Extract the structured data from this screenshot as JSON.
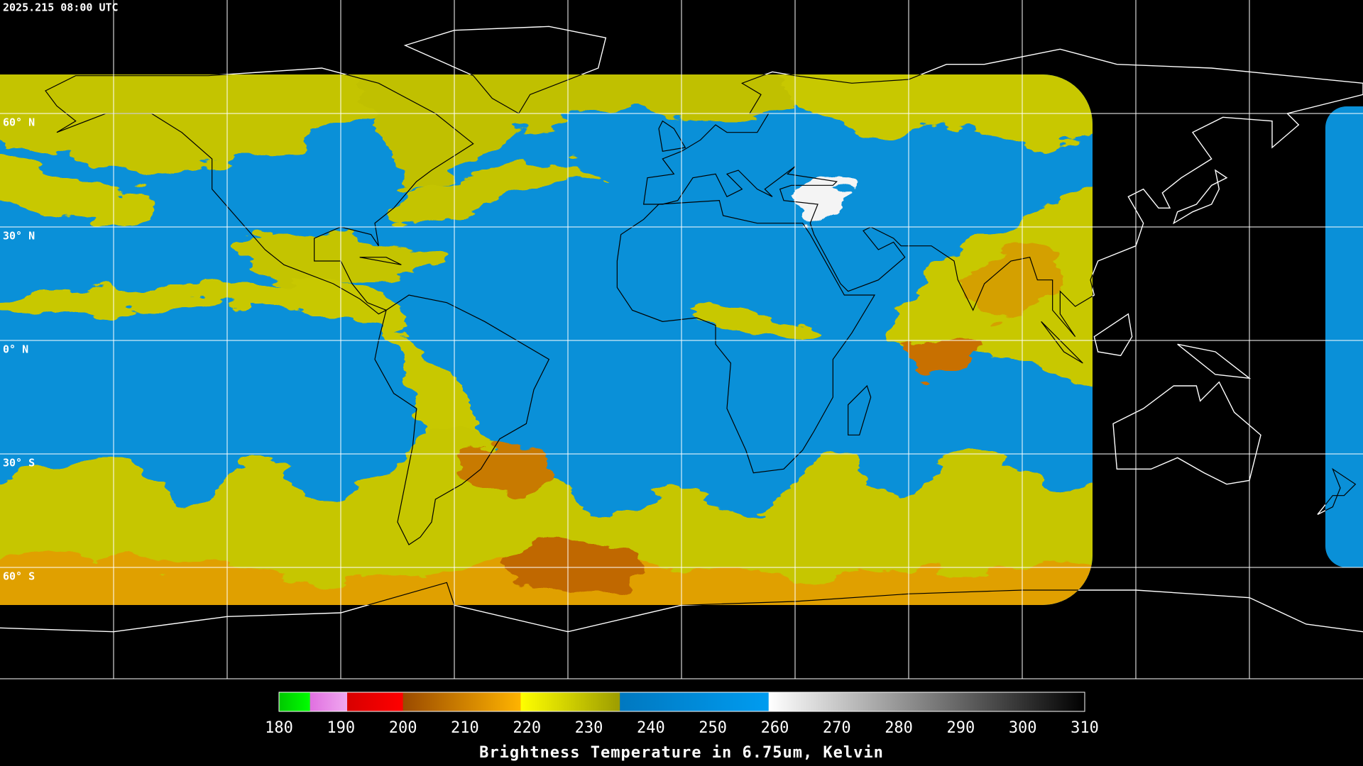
{
  "header": {
    "timestamp": "2025.215 08:00 UTC"
  },
  "map": {
    "latitude_labels": [
      "60° N",
      "30° N",
      "0° N",
      "30° S",
      "60° S"
    ]
  },
  "colorbar": {
    "title": "Brightness Temperature in 6.75um, Kelvin",
    "range": [
      180,
      310
    ],
    "ticks": [
      180,
      190,
      200,
      210,
      220,
      230,
      240,
      250,
      260,
      270,
      280,
      290,
      300,
      310
    ],
    "segments": [
      {
        "from": 180,
        "to": 185,
        "colors": [
          "#00c800",
          "#00ff00"
        ]
      },
      {
        "from": 185,
        "to": 191,
        "colors": [
          "#e070e0",
          "#f0a8f0"
        ]
      },
      {
        "from": 191,
        "to": 200,
        "colors": [
          "#d80000",
          "#ff0000"
        ]
      },
      {
        "from": 200,
        "to": 219,
        "colors": [
          "#9a4a00",
          "#ffb400"
        ]
      },
      {
        "from": 219,
        "to": 235,
        "colors": [
          "#ffff00",
          "#9c9c00"
        ]
      },
      {
        "from": 235,
        "to": 259,
        "colors": [
          "#0078c0",
          "#009cf0"
        ]
      },
      {
        "from": 259,
        "to": 310,
        "colors": [
          "#ffffff",
          "#000000"
        ]
      }
    ]
  }
}
